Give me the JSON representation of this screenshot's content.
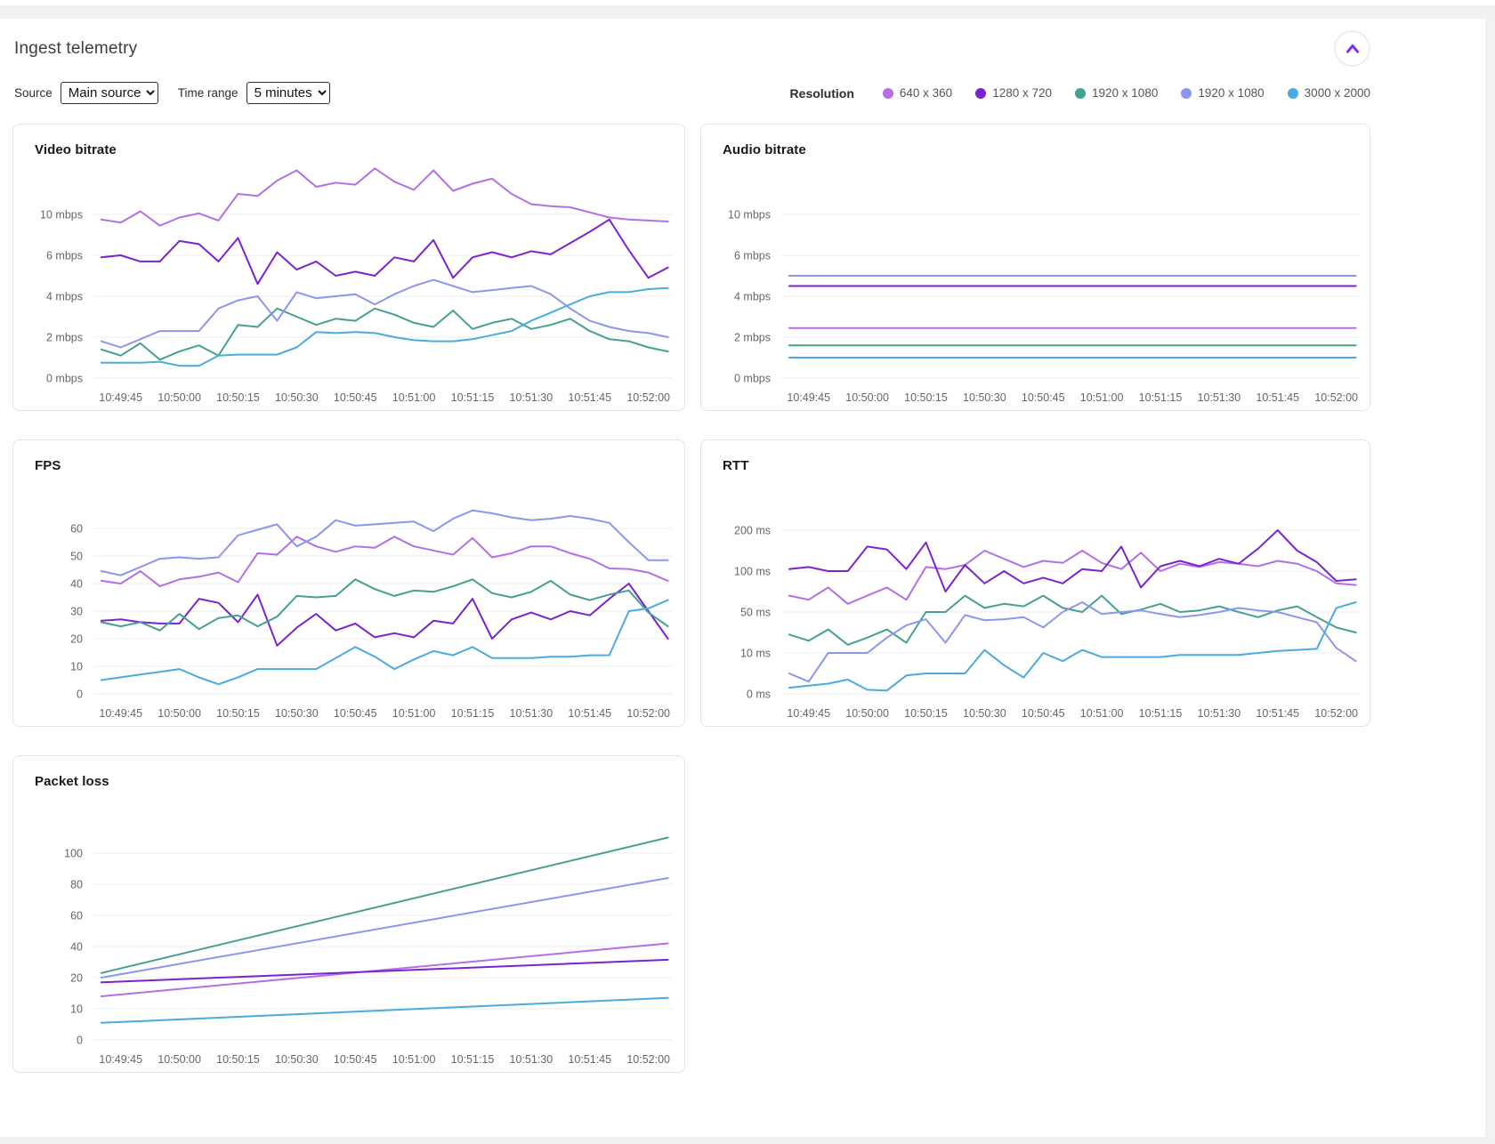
{
  "page_title": "Ingest telemetry",
  "controls": {
    "source_label": "Source",
    "source_value": "Main source",
    "time_range_label": "Time range",
    "time_range_value": "5 minutes"
  },
  "legend": {
    "title": "Resolution",
    "items": [
      {
        "label": "640 x 360"
      },
      {
        "label": "1280 x 720"
      },
      {
        "label": "1920 x 1080"
      },
      {
        "label": "1920 x 1080"
      },
      {
        "label": "3000 x 2000"
      }
    ]
  },
  "colors": {
    "accent": "#7b2ff0",
    "series": [
      "#b36fe8",
      "#7a24cf",
      "#46a091",
      "#8c96f0",
      "#49abe0"
    ],
    "gridline": "#ececee"
  },
  "chart_data": {
    "common": {
      "x_tick_labels": [
        "10:49:45",
        "10:50:00",
        "10:50:15",
        "10:50:30",
        "10:50:45",
        "10:51:00",
        "10:51:15",
        "10:51:30",
        "10:51:45",
        "10:52:00"
      ],
      "x_tick_seconds": [
        7,
        22,
        37,
        52,
        67,
        82,
        97,
        112,
        127,
        142
      ],
      "x_domain_seconds": [
        0,
        148
      ],
      "point_start_second": 2,
      "point_step_seconds": 5
    },
    "panels": [
      {
        "id": "video",
        "type": "line",
        "title": "Video bitrate",
        "ylabel": "mbps",
        "y_tick_values": [
          0,
          2,
          4,
          6,
          10
        ],
        "y_tick_labels": [
          "0 mbps",
          "2 mbps",
          "4 mbps",
          "6 mbps",
          "10 mbps"
        ],
        "series": [
          {
            "name": "640 x 360",
            "values": [
              9.5,
              9.2,
              10.3,
              8.9,
              9.7,
              10.1,
              9.4,
              12.0,
              11.8,
              13.3,
              14.3,
              12.7,
              13.1,
              12.9,
              14.5,
              13.2,
              12.4,
              14.3,
              12.3,
              13.0,
              13.5,
              12.0,
              11.0,
              10.8,
              10.7,
              10.2,
              9.7,
              9.5,
              9.4,
              9.3
            ]
          },
          {
            "name": "1280 x 720",
            "values": [
              5.9,
              6.0,
              5.7,
              5.7,
              7.4,
              7.1,
              5.7,
              7.7,
              4.6,
              6.3,
              5.3,
              5.7,
              5.0,
              5.2,
              5.0,
              5.9,
              5.7,
              7.5,
              4.9,
              5.9,
              6.3,
              5.9,
              6.4,
              6.1,
              7.2,
              8.3,
              9.5,
              6.5,
              4.9,
              5.4
            ]
          },
          {
            "name": "1920 x 1080",
            "values": [
              1.4,
              1.1,
              1.7,
              0.9,
              1.3,
              1.6,
              1.1,
              2.6,
              2.5,
              3.4,
              3.0,
              2.6,
              2.9,
              2.8,
              3.4,
              3.1,
              2.7,
              2.5,
              3.3,
              2.4,
              2.7,
              2.9,
              2.4,
              2.6,
              2.9,
              2.3,
              1.9,
              1.8,
              1.5,
              1.3
            ]
          },
          {
            "name": "1920 x 1080",
            "values": [
              1.8,
              1.5,
              1.9,
              2.3,
              2.3,
              2.3,
              3.4,
              3.8,
              4.0,
              2.8,
              4.2,
              3.9,
              4.0,
              4.1,
              3.6,
              4.1,
              4.5,
              4.8,
              4.5,
              4.2,
              4.3,
              4.4,
              4.5,
              4.1,
              3.4,
              2.8,
              2.5,
              2.3,
              2.2,
              2.0
            ]
          },
          {
            "name": "3000 x 2000",
            "values": [
              0.75,
              0.75,
              0.75,
              0.8,
              0.6,
              0.6,
              1.1,
              1.15,
              1.15,
              1.15,
              1.5,
              2.25,
              2.2,
              2.25,
              2.2,
              2.0,
              1.85,
              1.8,
              1.8,
              1.9,
              2.1,
              2.3,
              2.8,
              3.2,
              3.6,
              4.0,
              4.2,
              4.2,
              4.35,
              4.4
            ]
          }
        ]
      },
      {
        "id": "audio",
        "type": "line",
        "title": "Audio bitrate",
        "ylabel": "mbps",
        "y_tick_values": [
          0,
          2,
          4,
          6,
          10
        ],
        "y_tick_labels": [
          "0 mbps",
          "2 mbps",
          "4 mbps",
          "6 mbps",
          "10 mbps"
        ],
        "series": [
          {
            "name": "640 x 360",
            "values": 2.45
          },
          {
            "name": "1280 x 720",
            "values": 4.5
          },
          {
            "name": "1920 x 1080",
            "values": 1.6
          },
          {
            "name": "1920 x 1080",
            "values": 5.0
          },
          {
            "name": "3000 x 2000",
            "values": 1.0
          }
        ]
      },
      {
        "id": "fps",
        "type": "line",
        "title": "FPS",
        "ylabel": "fps",
        "y_tick_values": [
          0,
          10,
          20,
          30,
          40,
          50,
          60
        ],
        "y_tick_labels": [
          "0",
          "10",
          "20",
          "30",
          "40",
          "50",
          "60"
        ],
        "series": [
          {
            "name": "640 x 360",
            "values": [
              41,
              40,
              44.5,
              39,
              41.5,
              42.5,
              44,
              40.5,
              51,
              50.5,
              57,
              53.5,
              51.5,
              53.5,
              53,
              57,
              53.5,
              52,
              50.5,
              56.5,
              49.5,
              51,
              53.5,
              53.5,
              51,
              49,
              45.5,
              45.3,
              44,
              41
            ]
          },
          {
            "name": "1280 x 720",
            "values": [
              26.5,
              27,
              26,
              25.5,
              25.5,
              34.5,
              33,
              26,
              36,
              17.5,
              24,
              29,
              23,
              25.5,
              20.5,
              22,
              20.5,
              26.5,
              25.5,
              34.5,
              20,
              27,
              29.5,
              27,
              30,
              28.5,
              34.5,
              40,
              30,
              20
            ]
          },
          {
            "name": "1920 x 1080",
            "values": [
              26,
              24.5,
              26,
              23,
              29,
              23.5,
              27.5,
              28.5,
              24.5,
              28,
              35.5,
              35,
              35.5,
              41.5,
              38,
              35.5,
              37.5,
              37,
              39,
              41.5,
              36.5,
              35,
              37,
              41,
              36,
              34,
              36,
              37.5,
              29.5,
              24.5
            ]
          },
          {
            "name": "1920 x 1080",
            "values": [
              44.5,
              43,
              46,
              49,
              49.5,
              49,
              49.5,
              57.5,
              59.5,
              61.5,
              53.5,
              57,
              63,
              61,
              61.5,
              62,
              62.5,
              59,
              63.5,
              66.5,
              65.5,
              64,
              63,
              63.5,
              64.5,
              63.5,
              62,
              55,
              48.5,
              48.5
            ]
          },
          {
            "name": "3000 x 2000",
            "values": [
              5,
              6,
              7,
              8,
              9,
              6,
              3.5,
              6,
              9,
              9,
              9,
              9,
              13,
              17,
              13.5,
              9,
              12.5,
              15.5,
              14,
              17,
              13,
              13,
              13,
              13.5,
              13.5,
              14,
              14,
              30,
              31,
              34
            ]
          }
        ]
      },
      {
        "id": "rtt",
        "type": "line",
        "title": "RTT",
        "ylabel": "ms",
        "y_tick_values": [
          0,
          10,
          50,
          100,
          200
        ],
        "y_tick_labels": [
          "0 ms",
          "10 ms",
          "50 ms",
          "100 ms",
          "200 ms"
        ],
        "series": [
          {
            "name": "640 x 360",
            "values": [
              70,
              65,
              80,
              60,
              70,
              80,
              65,
              110,
              105,
              115,
              150,
              130,
              110,
              125,
              120,
              150,
              120,
              105,
              145,
              100,
              118,
              110,
              122,
              118,
              112,
              125,
              118,
              100,
              85,
              83
            ]
          },
          {
            "name": "1280 x 720",
            "values": [
              105,
              110,
              100,
              100,
              160,
              153,
              105,
              170,
              75,
              115,
              85,
              100,
              85,
              92,
              85,
              105,
              100,
              160,
              80,
              112,
              125,
              112,
              130,
              118,
              155,
              200,
              150,
              122,
              88,
              90
            ]
          },
          {
            "name": "1920 x 1080",
            "values": [
              28,
              22,
              33,
              18,
              25,
              33,
              20,
              50,
              50,
              70,
              55,
              60,
              57,
              70,
              55,
              50,
              70,
              48,
              53,
              60,
              50,
              52,
              57,
              50,
              45,
              52,
              57,
              45,
              35,
              30
            ]
          },
          {
            "name": "1920 x 1080",
            "values": [
              5,
              3,
              10,
              10,
              10,
              25,
              37,
              43,
              20,
              47,
              42,
              43,
              45,
              35,
              50,
              62,
              48,
              50,
              52,
              48,
              45,
              47,
              50,
              55,
              52,
              50,
              45,
              40,
              15,
              8
            ]
          },
          {
            "name": "3000 x 2000",
            "values": [
              1.5,
              2,
              2.5,
              3.5,
              1,
              0.8,
              4.5,
              5,
              5,
              5,
              13,
              7,
              4,
              10,
              8,
              13,
              9,
              9,
              9,
              9,
              9.5,
              9.5,
              9.5,
              9.5,
              10,
              12,
              13,
              14,
              55,
              62
            ]
          }
        ]
      },
      {
        "id": "packet",
        "type": "line",
        "title": "Packet loss",
        "ylabel": "",
        "y_tick_values": [
          0,
          10,
          20,
          40,
          60,
          80,
          100
        ],
        "y_tick_labels": [
          "0",
          "10",
          "20",
          "40",
          "60",
          "80",
          "100"
        ],
        "series": [
          {
            "name": "640 x 360",
            "values": [
              14,
              42
            ]
          },
          {
            "name": "1280 x 720",
            "values": [
              18.5,
              31.5
            ]
          },
          {
            "name": "1920 x 1080",
            "values": [
              23,
              110
            ]
          },
          {
            "name": "1920 x 1080",
            "values": [
              20,
              84
            ]
          },
          {
            "name": "3000 x 2000",
            "values": [
              5.5,
              13.5
            ]
          }
        ]
      }
    ]
  }
}
